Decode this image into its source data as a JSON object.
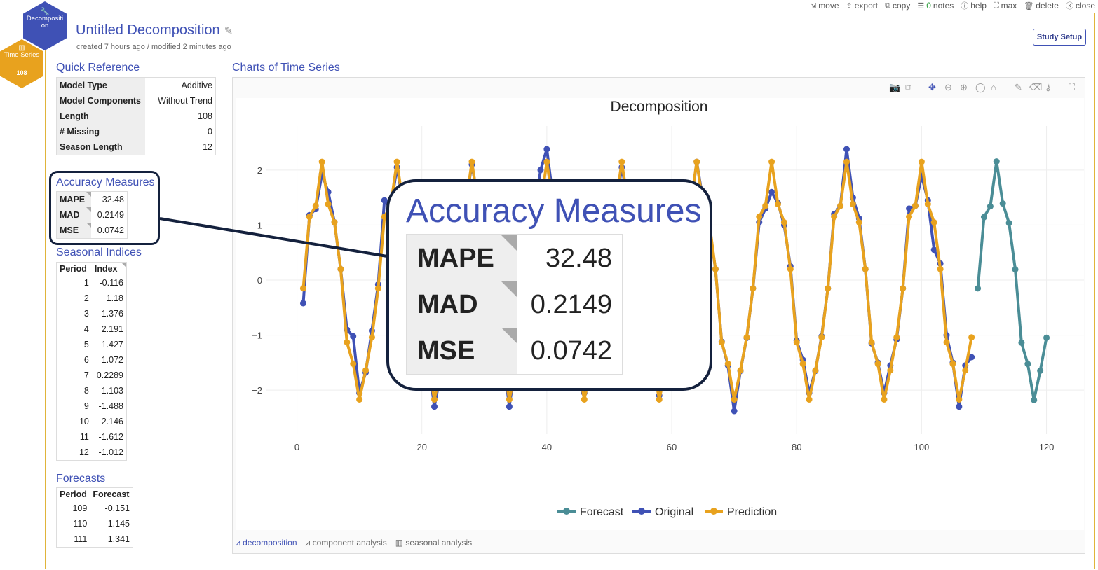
{
  "topbar": {
    "move": "move",
    "export": "export",
    "copy": "copy",
    "notes_count": "0",
    "notes": "notes",
    "help": "help",
    "max": "max",
    "delete": "delete",
    "close": "close"
  },
  "hex": {
    "top": "Decompositi on",
    "bottom": "Time Series",
    "badge": "108"
  },
  "header": {
    "title": "Untitled Decomposition",
    "subtitle": "created 7 hours ago / modified 2 minutes ago",
    "study_setup": "Study Setup"
  },
  "quick_reference": {
    "heading": "Quick Reference",
    "rows": [
      {
        "k": "Model Type",
        "v": "Additive"
      },
      {
        "k": "Model Components",
        "v": "Without Trend"
      },
      {
        "k": "Length",
        "v": "108"
      },
      {
        "k": "# Missing",
        "v": "0"
      },
      {
        "k": "Season Length",
        "v": "12"
      }
    ]
  },
  "accuracy": {
    "heading": "Accuracy Measures",
    "rows": [
      {
        "k": "MAPE",
        "v": "32.48"
      },
      {
        "k": "MAD",
        "v": "0.2149"
      },
      {
        "k": "MSE",
        "v": "0.0742"
      }
    ]
  },
  "seasonal": {
    "heading": "Seasonal Indices",
    "col1": "Period",
    "col2": "Index",
    "rows": [
      [
        "1",
        "-0.116"
      ],
      [
        "2",
        "1.18"
      ],
      [
        "3",
        "1.376"
      ],
      [
        "4",
        "2.191"
      ],
      [
        "5",
        "1.427"
      ],
      [
        "6",
        "1.072"
      ],
      [
        "7",
        "0.2289"
      ],
      [
        "8",
        "-1.103"
      ],
      [
        "9",
        "-1.488"
      ],
      [
        "10",
        "-2.146"
      ],
      [
        "11",
        "-1.612"
      ],
      [
        "12",
        "-1.012"
      ]
    ]
  },
  "forecasts": {
    "heading": "Forecasts",
    "col1": "Period",
    "col2": "Forecast",
    "rows": [
      [
        "109",
        "-0.151"
      ],
      [
        "110",
        "1.145"
      ],
      [
        "111",
        "1.341"
      ]
    ]
  },
  "chart_section": {
    "heading": "Charts of Time Series",
    "tabs": [
      "decomposition",
      "component analysis",
      "seasonal analysis"
    ]
  },
  "colors": {
    "forecast": "#4a8d96",
    "original": "#3f51b5",
    "prediction": "#e8a21e",
    "accent": "#3f51b5"
  },
  "chart_data": {
    "type": "line",
    "title": "Decomposition",
    "xlim": [
      -5,
      126
    ],
    "ylim": [
      -2.8,
      2.8
    ],
    "xticks": [
      0,
      20,
      40,
      60,
      80,
      100,
      120
    ],
    "yticks": [
      2,
      1,
      0,
      -1,
      -2
    ],
    "legend": "bottom-center",
    "series": [
      {
        "name": "Forecast",
        "x": [
          109,
          110,
          111,
          112,
          113,
          114,
          115,
          116,
          117,
          118,
          119,
          120
        ],
        "values": [
          -0.151,
          1.145,
          1.341,
          2.156,
          1.392,
          1.037,
          0.194,
          -1.138,
          -1.523,
          -2.181,
          -1.647,
          -1.047
        ]
      },
      {
        "name": "Original",
        "x": [
          1,
          2,
          3,
          4,
          5,
          6,
          7,
          8,
          9,
          10,
          11,
          12,
          13,
          14,
          15,
          16,
          17,
          18,
          19,
          20,
          21,
          22,
          23,
          24,
          25,
          26,
          27,
          28,
          29,
          30,
          31,
          32,
          33,
          34,
          35,
          36,
          37,
          38,
          39,
          40,
          41,
          42,
          43,
          44,
          45,
          46,
          47,
          48,
          49,
          50,
          51,
          52,
          53,
          54,
          55,
          56,
          57,
          58,
          59,
          60,
          61,
          62,
          63,
          64,
          65,
          66,
          67,
          68,
          69,
          70,
          71,
          72,
          73,
          74,
          75,
          76,
          77,
          78,
          79,
          80,
          81,
          82,
          83,
          84,
          85,
          86,
          87,
          88,
          89,
          90,
          91,
          92,
          93,
          94,
          95,
          96,
          97,
          98,
          99,
          100,
          101,
          102,
          103,
          104,
          105,
          106,
          107,
          108
        ],
        "values": [
          -0.42,
          1.18,
          1.29,
          1.93,
          1.6,
          1.05,
          0.2,
          -0.9,
          -1.02,
          -2.05,
          -1.68,
          -0.92,
          -0.08,
          1.45,
          1.3,
          2.05,
          1.4,
          1.1,
          0.15,
          -1.15,
          -1.45,
          -2.3,
          -1.7,
          -0.95,
          -0.2,
          1.3,
          1.4,
          2.1,
          1.45,
          1.02,
          0.3,
          -1.08,
          -1.4,
          -2.3,
          -1.5,
          -1.05,
          -0.15,
          1.2,
          2.0,
          2.38,
          1.48,
          1.1,
          0.2,
          -1.1,
          -1.55,
          -2.05,
          -1.6,
          -1.0,
          -0.1,
          1.2,
          1.35,
          2.05,
          1.45,
          1.1,
          0.25,
          -1.1,
          -1.5,
          -2.1,
          -1.6,
          -1.1,
          -0.2,
          1.15,
          1.3,
          2.15,
          1.45,
          1.0,
          0.2,
          -1.12,
          -1.55,
          -2.38,
          -1.65,
          -1.05,
          -0.15,
          1.05,
          1.3,
          1.6,
          1.4,
          1.0,
          0.25,
          -1.1,
          -1.45,
          -2.05,
          -1.65,
          -1.02,
          -0.15,
          1.2,
          1.35,
          2.38,
          1.5,
          1.12,
          0.2,
          -1.15,
          -1.5,
          -2.05,
          -1.55,
          -1.08,
          -0.15,
          1.3,
          1.35,
          1.9,
          1.45,
          0.55,
          0.3,
          -1.0,
          -1.5,
          -2.3,
          -1.55,
          -1.4
        ]
      },
      {
        "name": "Prediction",
        "x": [
          1,
          2,
          3,
          4,
          5,
          6,
          7,
          8,
          9,
          10,
          11,
          12,
          13,
          14,
          15,
          16,
          17,
          18,
          19,
          20,
          21,
          22,
          23,
          24,
          25,
          26,
          27,
          28,
          29,
          30,
          31,
          32,
          33,
          34,
          35,
          36,
          37,
          38,
          39,
          40,
          41,
          42,
          43,
          44,
          45,
          46,
          47,
          48,
          49,
          50,
          51,
          52,
          53,
          54,
          55,
          56,
          57,
          58,
          59,
          60,
          61,
          62,
          63,
          64,
          65,
          66,
          67,
          68,
          69,
          70,
          71,
          72,
          73,
          74,
          75,
          76,
          77,
          78,
          79,
          80,
          81,
          82,
          83,
          84,
          85,
          86,
          87,
          88,
          89,
          90,
          91,
          92,
          93,
          94,
          95,
          96,
          97,
          98,
          99,
          100,
          101,
          102,
          103,
          104,
          105,
          106,
          107,
          108
        ],
        "values": [
          -0.15,
          1.15,
          1.35,
          2.15,
          1.38,
          1.05,
          0.2,
          -1.13,
          -1.52,
          -2.17,
          -1.64,
          -1.04,
          -0.15,
          1.15,
          1.35,
          2.15,
          1.38,
          1.05,
          0.2,
          -1.13,
          -1.52,
          -2.17,
          -1.64,
          -1.04,
          -0.15,
          1.15,
          1.35,
          2.15,
          1.38,
          1.05,
          0.2,
          -1.13,
          -1.52,
          -2.17,
          -1.64,
          -1.04,
          -0.15,
          1.15,
          1.35,
          2.15,
          1.38,
          1.05,
          0.2,
          -1.13,
          -1.52,
          -2.17,
          -1.64,
          -1.04,
          -0.15,
          1.15,
          1.35,
          2.15,
          1.38,
          1.05,
          0.2,
          -1.13,
          -1.52,
          -2.17,
          -1.64,
          -1.04,
          -0.15,
          1.15,
          1.35,
          2.15,
          1.38,
          1.05,
          0.2,
          -1.13,
          -1.52,
          -2.17,
          -1.64,
          -1.04,
          -0.15,
          1.15,
          1.35,
          2.15,
          1.38,
          1.05,
          0.2,
          -1.13,
          -1.52,
          -2.17,
          -1.64,
          -1.04,
          -0.15,
          1.15,
          1.35,
          2.15,
          1.38,
          1.05,
          0.2,
          -1.13,
          -1.52,
          -2.17,
          -1.64,
          -1.04,
          -0.15,
          1.15,
          1.35,
          2.15,
          1.38,
          1.05,
          0.2,
          -1.13,
          -1.52,
          -2.17,
          -1.64,
          -1.04
        ]
      }
    ]
  }
}
